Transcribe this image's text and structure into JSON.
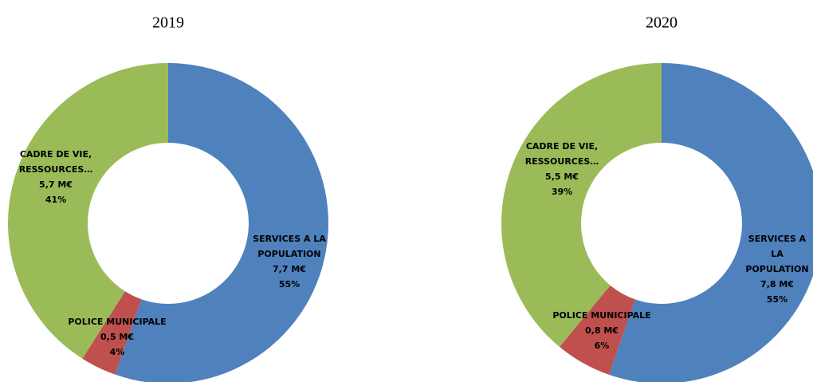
{
  "chart_data": [
    {
      "type": "donut",
      "title": "2019",
      "categories": [
        "SERVICES A LA\nPOPULATION",
        "POLICE MUNICIPALE",
        "CADRE DE VIE,\nRESSOURCES…"
      ],
      "values": [
        7.7,
        0.5,
        5.7
      ],
      "value_labels": [
        "7,7 M€",
        "0,5 M€",
        "5,7 M€"
      ],
      "percent_labels": [
        "55%",
        "4%",
        "41%"
      ],
      "colors": [
        "#4f81bd",
        "#c0504d",
        "#9bbb59"
      ]
    },
    {
      "type": "donut",
      "title": "2020",
      "categories": [
        "SERVICES A LA\nPOPULATION",
        "POLICE MUNICIPALE",
        "CADRE DE VIE,\nRESSOURCES…"
      ],
      "values": [
        7.8,
        0.8,
        5.5
      ],
      "value_labels": [
        "7,8 M€",
        "0,8 M€",
        "5,5 M€"
      ],
      "percent_labels": [
        "55%",
        "6%",
        "39%"
      ],
      "colors": [
        "#4f81bd",
        "#c0504d",
        "#9bbb59"
      ]
    }
  ]
}
